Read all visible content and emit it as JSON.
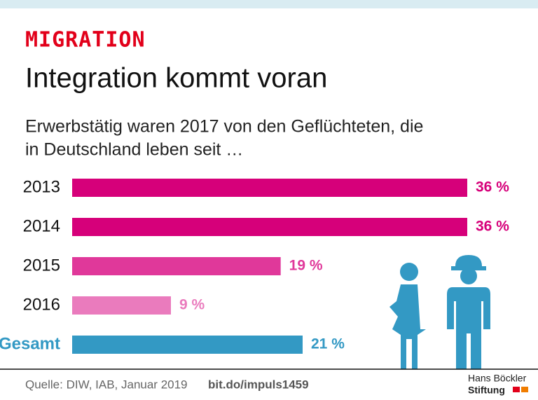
{
  "chart_data": {
    "type": "bar",
    "kicker": "MIGRATION",
    "title": "Integration kommt voran",
    "subtitle": [
      "Erwerbstätig waren 2017 von den Geflüchteten, die",
      "in Deutschland leben seit …"
    ],
    "categories": [
      "2013",
      "2014",
      "2015",
      "2016",
      "Gesamt"
    ],
    "values": [
      36,
      36,
      19,
      9,
      21
    ],
    "value_labels": [
      "36 %",
      "36 %",
      "19 %",
      "9 %",
      "21 %"
    ],
    "colors": [
      "#d6007a",
      "#d6007a",
      "#e0389a",
      "#ea7bbd",
      "#3399c4"
    ],
    "source": "Quelle: DIW, IAB, Januar 2019",
    "link": "bit.do/impuls1459",
    "logo": [
      "Hans Böckler",
      "Stiftung"
    ]
  }
}
